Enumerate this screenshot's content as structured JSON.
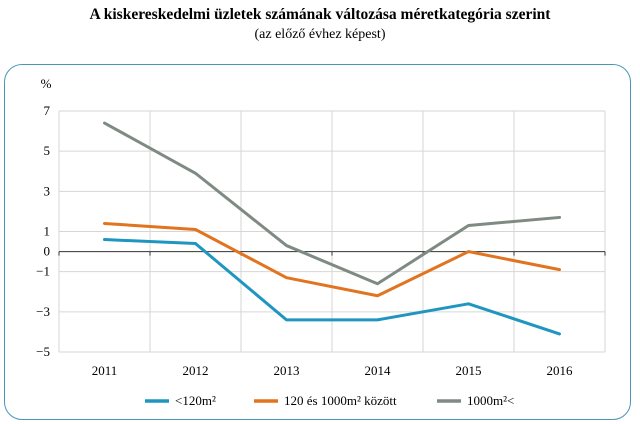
{
  "title": "A kiskereskedelmi üzletek számának változása méretkategória szerint",
  "subtitle": "(az előző évhez képest)",
  "chart_data": {
    "type": "line",
    "unit_label": "%",
    "x": [
      "2011",
      "2012",
      "2013",
      "2014",
      "2015",
      "2016"
    ],
    "yticks": [
      7,
      5,
      3,
      1,
      0,
      -1,
      -3,
      -5
    ],
    "ylim": [
      -5,
      7
    ],
    "grid": true,
    "legend": "bottom",
    "series": [
      {
        "name": "<120m²",
        "color": "#1f96c0",
        "values": [
          0.6,
          0.4,
          -3.4,
          -3.4,
          -2.6,
          -4.1
        ]
      },
      {
        "name": "120 és 1000m² között",
        "color": "#e2731f",
        "values": [
          1.4,
          1.1,
          -1.3,
          -2.2,
          0.0,
          -0.9
        ]
      },
      {
        "name": "1000m²<",
        "color": "#7f8a82",
        "values": [
          6.4,
          3.9,
          0.3,
          -1.6,
          1.3,
          1.7
        ]
      }
    ]
  }
}
